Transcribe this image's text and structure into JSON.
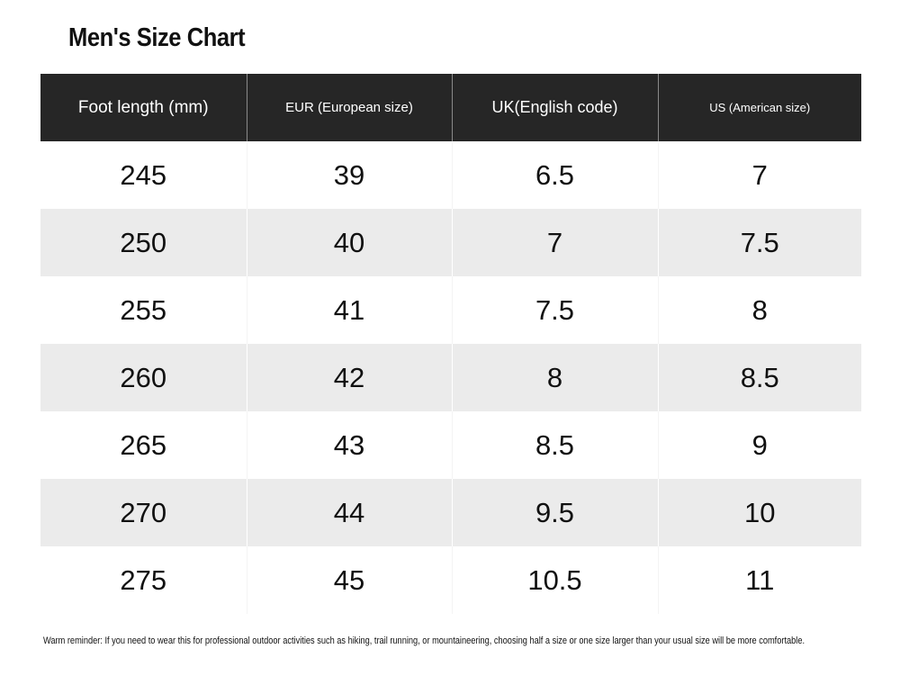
{
  "title": "Men's Size Chart",
  "table": {
    "headers": [
      "Foot length (mm)",
      "EUR (European size)",
      "UK(English code)",
      "US (American size)"
    ],
    "rows": [
      [
        "245",
        "39",
        "6.5",
        "7"
      ],
      [
        "250",
        "40",
        "7",
        "7.5"
      ],
      [
        "255",
        "41",
        "7.5",
        "8"
      ],
      [
        "260",
        "42",
        "8",
        "8.5"
      ],
      [
        "265",
        "43",
        "8.5",
        "9"
      ],
      [
        "270",
        "44",
        "9.5",
        "10"
      ],
      [
        "275",
        "45",
        "10.5",
        "11"
      ]
    ]
  },
  "reminder": "Warm reminder: If you need to wear this for professional outdoor activities such as hiking, trail running, or mountaineering, choosing half a size or one size larger than your usual size will be more comfortable.",
  "colors": {
    "header_background": "#262626",
    "header_text": "#ffffff",
    "stripe_background": "#ebebeb",
    "row_background": "#ffffff"
  }
}
